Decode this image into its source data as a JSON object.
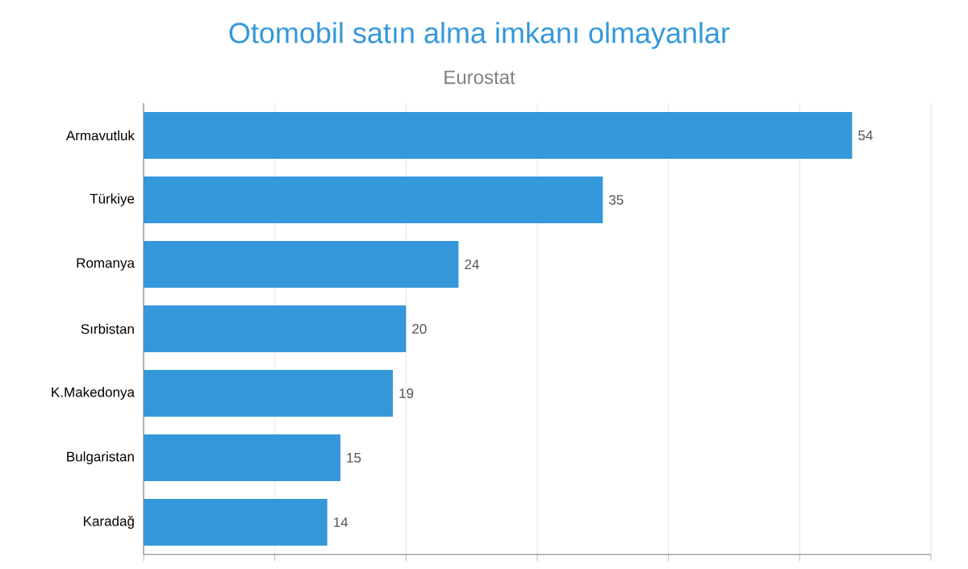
{
  "chart_data": {
    "type": "bar",
    "orientation": "horizontal",
    "title": "Otomobil satın alma imkanı olmayanlar",
    "subtitle": "Eurostat",
    "categories": [
      "Armavutluk",
      "Türkiye",
      "Romanya",
      "Sırbistan",
      "K.Makedonya",
      "Bulgaristan",
      "Karadağ"
    ],
    "values": [
      54,
      35,
      24,
      20,
      19,
      15,
      14
    ],
    "color": "#3498db",
    "xlim": [
      0,
      60
    ],
    "xticks": [
      {
        "value": 0,
        "label": null
      },
      {
        "value": 10,
        "label": null
      },
      {
        "value": 20,
        "label": null
      },
      {
        "value": 30,
        "label": null
      },
      {
        "value": 40,
        "label": null
      },
      {
        "value": 50,
        "label": null
      },
      {
        "value": 60,
        "label": null
      }
    ],
    "grid": "x",
    "tick_labels": "y",
    "data_labels": true
  }
}
